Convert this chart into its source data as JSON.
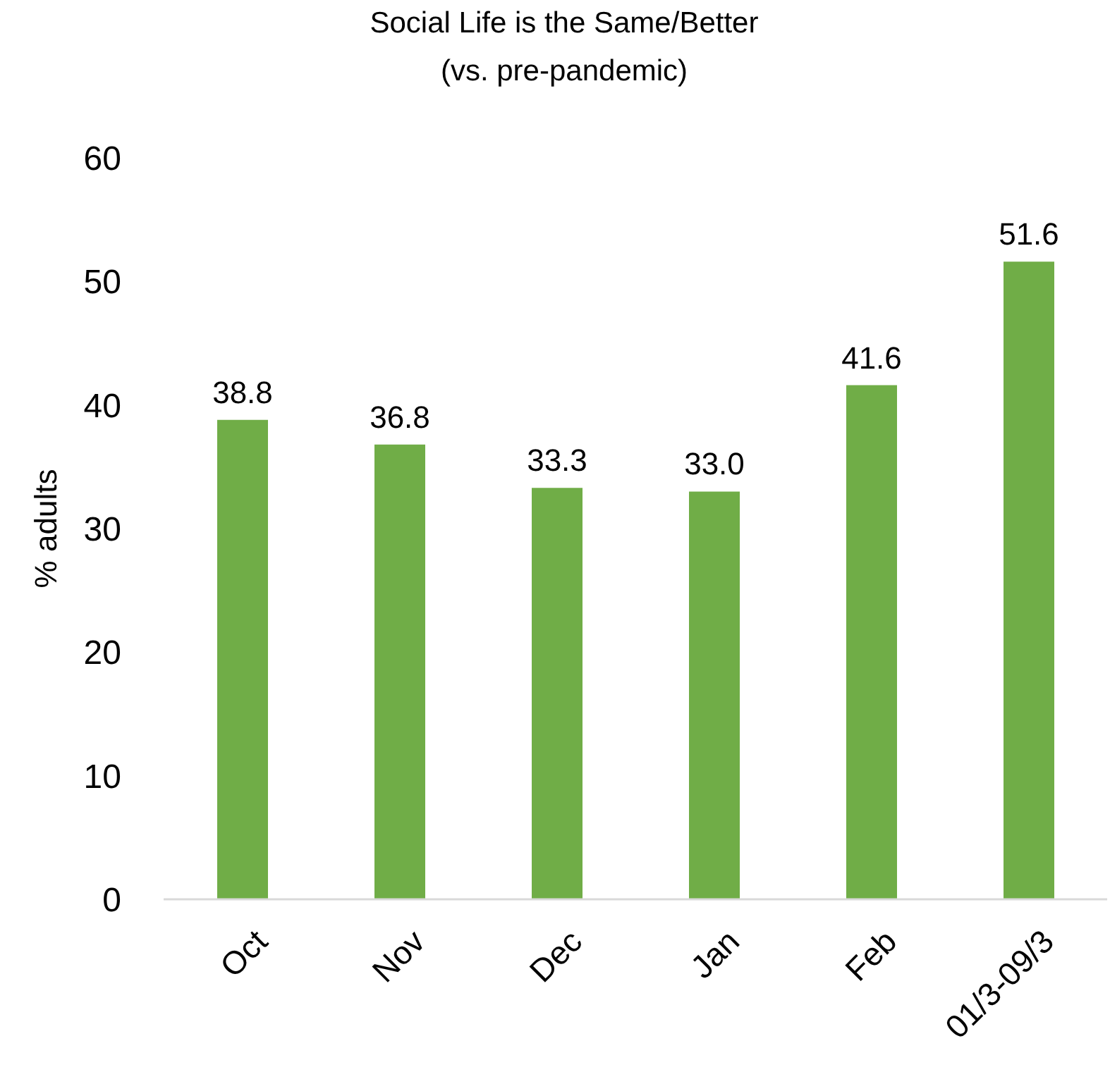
{
  "chart_data": {
    "type": "bar",
    "title": "Social Life is the Same/Better",
    "subtitle": "(vs. pre-pandemic)",
    "ylabel": "% adults",
    "categories": [
      "Oct",
      "Nov",
      "Dec",
      "Jan",
      "Feb",
      "01/3-09/3"
    ],
    "values": [
      38.8,
      36.8,
      33.3,
      33.0,
      41.6,
      51.6
    ],
    "value_labels": [
      "38.8",
      "36.8",
      "33.3",
      "33.0",
      "41.6",
      "51.6"
    ],
    "color": "#70ad47",
    "ylim": [
      0,
      60
    ],
    "yticks": [
      0,
      10,
      20,
      30,
      40,
      50,
      60
    ]
  }
}
